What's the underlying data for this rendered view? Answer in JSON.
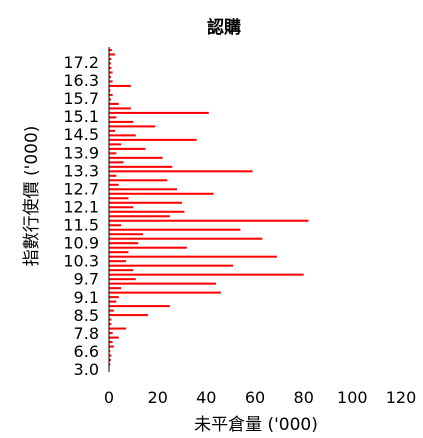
{
  "chart_data": {
    "type": "bar",
    "orientation": "horizontal",
    "title": "認購",
    "xlabel": "未平倉量 ('000)",
    "ylabel": "指數行使價 ('000)",
    "xlim": [
      0,
      120
    ],
    "x_ticks": [
      "0",
      "20",
      "40",
      "60",
      "80",
      "100",
      "120"
    ],
    "y_tick_labels": [
      "17.2",
      "16.3",
      "15.7",
      "15.1",
      "14.5",
      "13.9",
      "13.3",
      "12.7",
      "12.1",
      "11.5",
      "10.9",
      "10.3",
      "9.7",
      "9.1",
      "8.5",
      "7.8",
      "6.6",
      "3.0"
    ],
    "grid": false,
    "bar_color": "#ff0000",
    "values": [
      1.2,
      2.5,
      1,
      0.8,
      1,
      1.5,
      0.8,
      1.5,
      9,
      0.6,
      1.5,
      0.8,
      4,
      9,
      41,
      3,
      10,
      19,
      2.5,
      11,
      36,
      5,
      15,
      3,
      22,
      6,
      26,
      59,
      3,
      24,
      4,
      28,
      43,
      8,
      30,
      10,
      31,
      25,
      82,
      5,
      54,
      14,
      63,
      12,
      32,
      8,
      69,
      7,
      51,
      10,
      80,
      11,
      44,
      5,
      46,
      4,
      3,
      25,
      2,
      16,
      1,
      1,
      7,
      1.5,
      4,
      1.5,
      2,
      0.5,
      1,
      0.8,
      0.5
    ]
  }
}
